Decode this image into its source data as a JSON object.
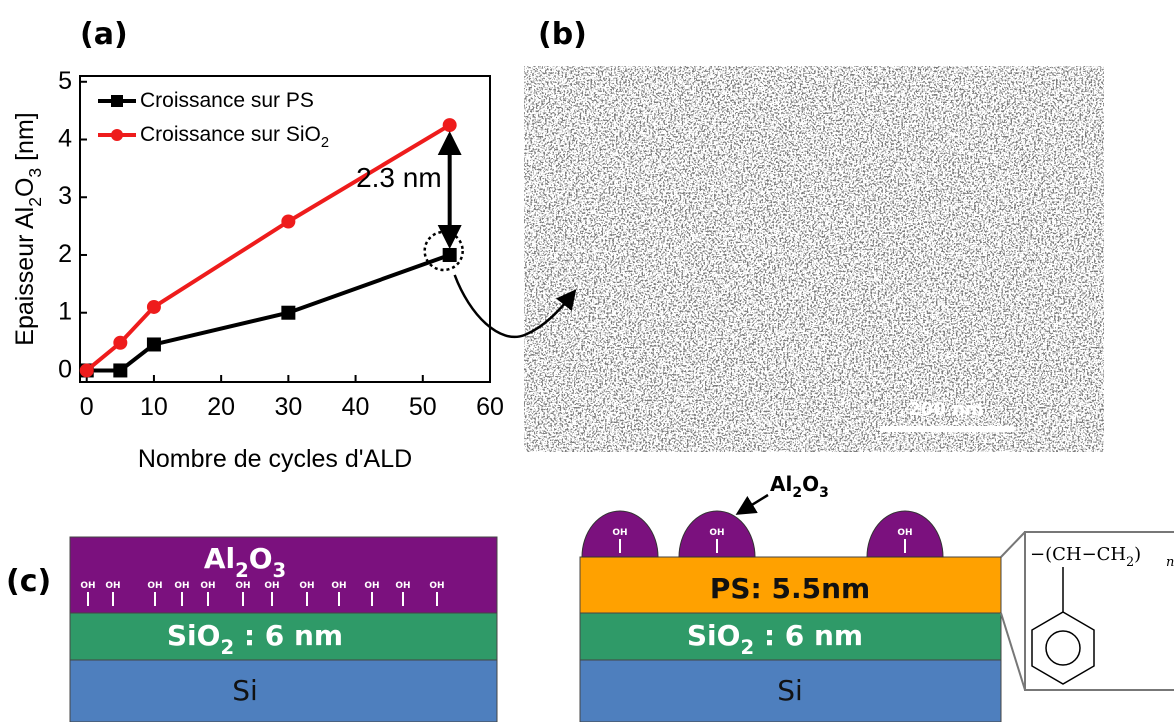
{
  "chart_data": {
    "type": "line",
    "x_label": "Nombre de cycles d'ALD",
    "y_label": "Epaisseur Al2O3 [nm]",
    "xlim": [
      -1,
      60
    ],
    "xticks": [
      0,
      10,
      20,
      30,
      40,
      50,
      60
    ],
    "ylim": [
      -0.2,
      5.1
    ],
    "yticks": [
      0,
      1,
      2,
      3,
      4,
      5
    ],
    "legend": "upper left",
    "annotation": "2.3 nm",
    "series": [
      {
        "name": "Croissance sur PS",
        "color": "#000000",
        "marker": "square",
        "x": [
          0,
          5,
          10,
          30,
          54
        ],
        "values": [
          0,
          0,
          0.45,
          1,
          2
        ]
      },
      {
        "name": "Croissance sur SiO2",
        "color": "#ee1c1c",
        "marker": "circle",
        "x": [
          0,
          5,
          10,
          30,
          54
        ],
        "values": [
          0,
          0.48,
          1.1,
          2.58,
          4.25
        ]
      }
    ]
  },
  "panels": {
    "a": "(a)",
    "b": "(b)",
    "c": "(c)"
  },
  "sem_image": {
    "scale_bar": "200 nm"
  },
  "diagram_left": {
    "layers": [
      "Al2O3",
      "SiO2 : 6 nm",
      "Si"
    ],
    "oh_labels": [
      "OH",
      "OH",
      "OH",
      "OH",
      "OH",
      "OH",
      "OH",
      "OH",
      "OH",
      "OH",
      "OH",
      "OH"
    ]
  },
  "diagram_right": {
    "particle_label": "Al2O3",
    "layers": [
      "PS: 5.5nm",
      "SiO2 : 6 nm",
      "Si"
    ],
    "oh_labels": [
      "OH",
      "OH",
      "OH"
    ],
    "monomer": {
      "formula": "CH−CH2",
      "subscript": "n"
    }
  }
}
